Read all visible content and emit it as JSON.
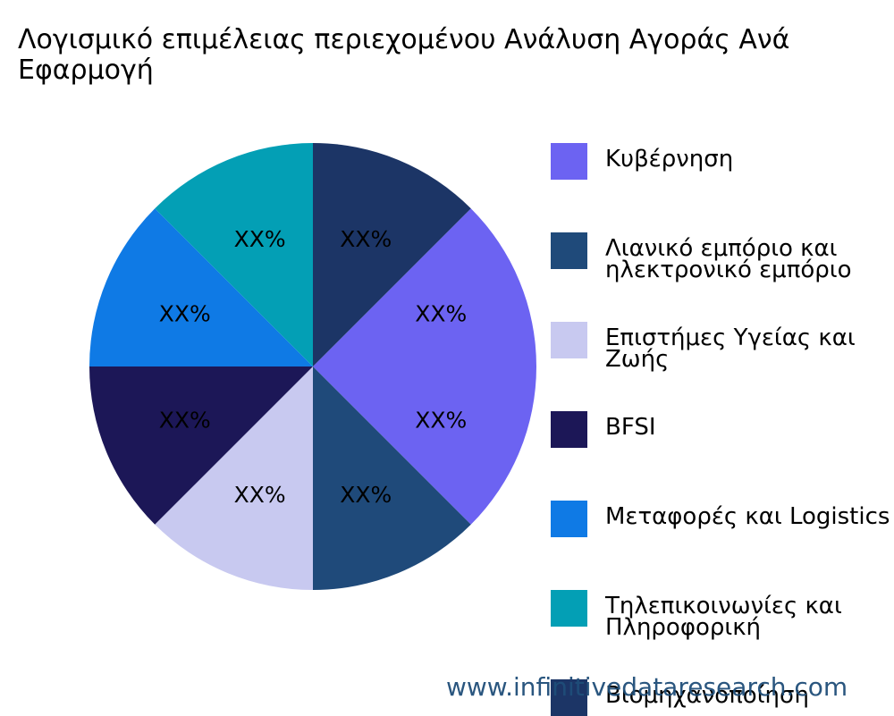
{
  "title": "Λογισμικό επιμέλειας περιεχομένου Ανάλυση Αγοράς Ανά\nΕφαρμογή",
  "watermark": "www.infinitivedataresearch.com",
  "legend": [
    {
      "label": "Κυβέρνηση",
      "color": "#6c63f2"
    },
    {
      "label": "Λιανικό εμπόριο και\nηλεκτρονικό εμπόριο",
      "color": "#1f4a7a"
    },
    {
      "label": "Επιστήμες Υγείας και\nΖωής",
      "color": "#c8c9f0"
    },
    {
      "label": "BFSI",
      "color": "#1c1757"
    },
    {
      "label": "Μεταφορές και Logistics",
      "color": "#0f7ae5"
    },
    {
      "label": "Τηλεπικοινωνίες και\nΠληροφορική",
      "color": "#039fb5"
    },
    {
      "label": "Βιομηχανοποίηση",
      "color": "#1c3566"
    }
  ],
  "chart_data": {
    "type": "pie",
    "title": "Λογισμικό επιμέλειας περιεχομένου Ανάλυση Αγοράς Ανά Εφαρμογή",
    "categories": [
      "Κυβέρνηση",
      "Λιανικό εμπόριο και ηλεκτρονικό εμπόριο",
      "Επιστήμες Υγείας και Ζωής",
      "BFSI",
      "Μεταφορές και Logistics",
      "Τηλεπικοινωνίες και Πληροφορική",
      "Βιομηχανοποίηση"
    ],
    "values": [
      25,
      12.5,
      12.5,
      12.5,
      12.5,
      12.5,
      12.5
    ],
    "data_labels": [
      "XX%",
      "XX%",
      "XX%",
      "XX%",
      "XX%",
      "XX%",
      "XX%"
    ],
    "colors": [
      "#6c63f2",
      "#1f4a7a",
      "#c8c9f0",
      "#1c1757",
      "#0f7ae5",
      "#039fb5",
      "#1c3566"
    ],
    "start_angle_deg": 45,
    "direction": "clockwise",
    "legend_position": "right",
    "xlabel": "",
    "ylabel": ""
  }
}
